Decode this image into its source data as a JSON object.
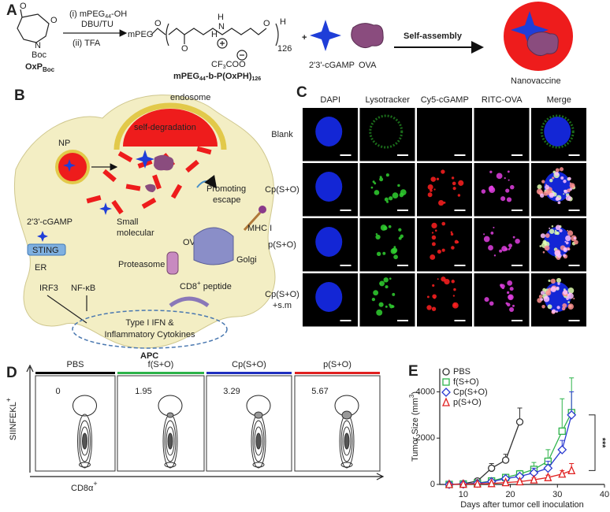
{
  "panel_a": {
    "label": "A",
    "ring_atoms": [
      "O",
      "O",
      "N",
      "Boc"
    ],
    "monomer": {
      "text": "OxP",
      "sub": "Boc"
    },
    "reagent_1": {
      "text": "(i) mPEG",
      "sub": "44",
      "tail": "-OH"
    },
    "reagent_2": "DBU/TU",
    "reagent_3": "(ii) TFA",
    "polymer_start": "mPEG",
    "polymer_atoms": [
      "O",
      "O",
      "H",
      "N",
      "H",
      "O",
      "H"
    ],
    "repeat": "126",
    "counterion": {
      "text": "CF",
      "sub": "3",
      "tail": "COO"
    },
    "polymer_name": {
      "text": "mPEG",
      "sub": "44",
      "mid": "-b-P(OxPH)",
      "sub2": "126"
    },
    "plus": "+",
    "drug": "2'3'-cGAMP",
    "antigen": "OVA",
    "process": "Self-assembly",
    "product": "Nanovaccine"
  },
  "panel_b": {
    "label": "B",
    "endosome": "endosome",
    "degradation": "self-degradation",
    "np": "NP",
    "escape": [
      "Promoting",
      "escape"
    ],
    "drug": "2'3'-cGAMP",
    "small": [
      "Small",
      "molecular"
    ],
    "antigen": "OVA",
    "mhc": "MHC I",
    "sting": "STING",
    "er": "ER",
    "irf3": "IRF3",
    "nfkb": "NF-κB",
    "proteasome": "Proteasome",
    "golgi": "Golgi",
    "peptide": {
      "text": "CD8",
      "sup": "+",
      "tail": " peptide"
    },
    "cytokines": [
      "Type I IFN &",
      "Inflammatory Cytokines"
    ],
    "cell": "APC"
  },
  "panel_c": {
    "label": "C",
    "columns": [
      "DAPI",
      "Lysotracker",
      "Cy5-cGAMP",
      "RITC-OVA",
      "Merge"
    ],
    "rows": [
      [
        "Blank"
      ],
      [
        "Cp(S+O)"
      ],
      [
        "p(S+O)"
      ],
      [
        "Cp(S+O)",
        "+s.m"
      ]
    ]
  },
  "panel_d": {
    "label": "D",
    "y_label": {
      "text": "SIINFEKL",
      "sup": "+"
    },
    "x_label": {
      "text": "CD8α",
      "sup": "+"
    },
    "samples": [
      {
        "name": "PBS",
        "color": "#000000",
        "value": "0"
      },
      {
        "name": "f(S+O)",
        "color": "#2db34a",
        "value": "1.95"
      },
      {
        "name": "Cp(S+O)",
        "color": "#1f2fbf",
        "value": "3.29"
      },
      {
        "name": "p(S+O)",
        "color": "#e02020",
        "value": "5.67"
      }
    ]
  },
  "panel_e_label": "E",
  "chart_data": {
    "type": "line",
    "y_label": {
      "text": "Tumor Size (mm",
      "sup": "3",
      "tail": ")"
    },
    "x_label": "Days after tumor cell inoculation",
    "xlim": [
      5,
      40
    ],
    "xticks": [
      10,
      20,
      30,
      40
    ],
    "ylim": [
      0,
      5000
    ],
    "yticks": [
      0,
      2000,
      4000
    ],
    "legend": "upper left",
    "annotation": "***",
    "series": [
      {
        "name": "PBS",
        "color": "#333333",
        "marker": "circle",
        "x": [
          7,
          10,
          13,
          16,
          19,
          22
        ],
        "values": [
          0,
          30,
          150,
          700,
          1050,
          2700
        ],
        "errors": [
          0,
          20,
          80,
          200,
          250,
          600
        ]
      },
      {
        "name": "f(S+O)",
        "color": "#2db34a",
        "marker": "square",
        "x": [
          7,
          10,
          13,
          16,
          19,
          22,
          25,
          28,
          31,
          33
        ],
        "values": [
          0,
          20,
          60,
          150,
          300,
          450,
          650,
          1000,
          2300,
          3100
        ],
        "errors": [
          0,
          10,
          30,
          60,
          100,
          150,
          300,
          500,
          1400,
          1500
        ]
      },
      {
        "name": "Cp(S+O)",
        "color": "#2a3ad0",
        "marker": "diamond",
        "x": [
          7,
          10,
          13,
          16,
          19,
          22,
          25,
          28,
          31,
          33
        ],
        "values": [
          0,
          15,
          50,
          120,
          250,
          350,
          500,
          700,
          1500,
          3000
        ],
        "errors": [
          0,
          10,
          20,
          50,
          80,
          100,
          200,
          300,
          400,
          1000
        ]
      },
      {
        "name": "p(S+O)",
        "color": "#e02020",
        "marker": "triangle",
        "x": [
          7,
          10,
          13,
          16,
          19,
          22,
          25,
          28,
          31,
          33
        ],
        "values": [
          0,
          10,
          20,
          40,
          80,
          120,
          200,
          300,
          450,
          600
        ],
        "errors": [
          0,
          5,
          10,
          20,
          30,
          50,
          80,
          100,
          150,
          300
        ]
      }
    ]
  }
}
